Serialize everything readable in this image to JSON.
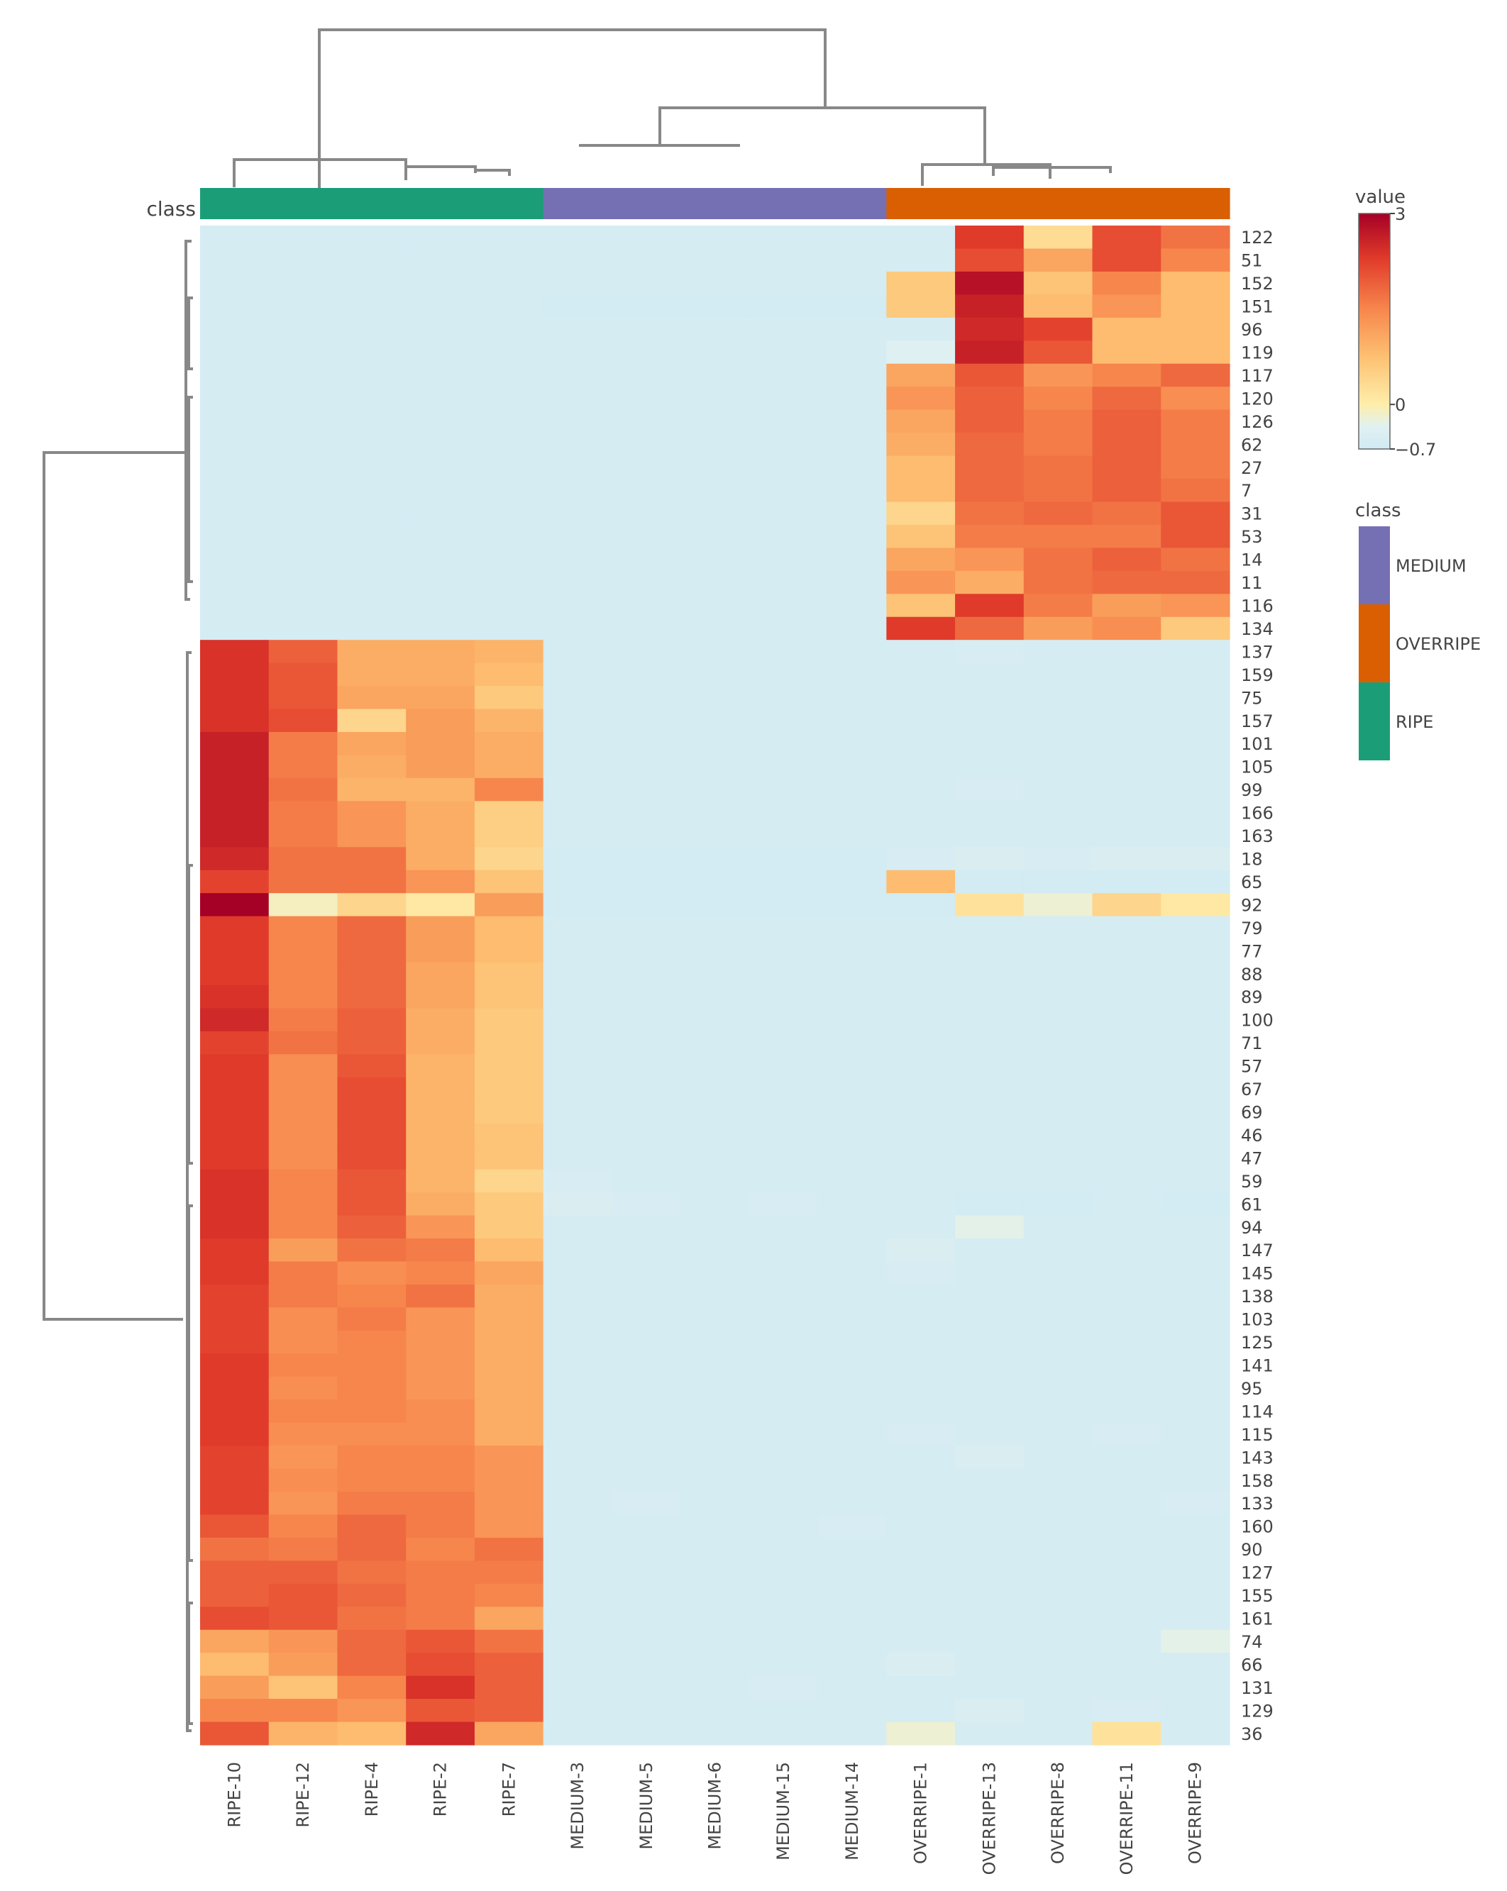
{
  "chart_data": {
    "type": "heatmap",
    "title": "",
    "xlabel": "",
    "ylabel": "",
    "annotation_title": "class",
    "columns": [
      "RIPE-10",
      "RIPE-12",
      "RIPE-4",
      "RIPE-2",
      "RIPE-7",
      "MEDIUM-3",
      "MEDIUM-5",
      "MEDIUM-6",
      "MEDIUM-15",
      "MEDIUM-14",
      "OVERRIPE-1",
      "OVERRIPE-13",
      "OVERRIPE-8",
      "OVERRIPE-11",
      "OVERRIPE-9"
    ],
    "column_classes": [
      "RIPE",
      "RIPE",
      "RIPE",
      "RIPE",
      "RIPE",
      "MEDIUM",
      "MEDIUM",
      "MEDIUM",
      "MEDIUM",
      "MEDIUM",
      "OVERRIPE",
      "OVERRIPE",
      "OVERRIPE",
      "OVERRIPE",
      "OVERRIPE"
    ],
    "rows": [
      "122",
      "51",
      "152",
      "151",
      "96",
      "119",
      "117",
      "120",
      "126",
      "62",
      "27",
      "7",
      "31",
      "53",
      "14",
      "11",
      "116",
      "134",
      "137",
      "159",
      "75",
      "157",
      "101",
      "105",
      "99",
      "166",
      "163",
      "18",
      "65",
      "92",
      "79",
      "77",
      "88",
      "89",
      "100",
      "71",
      "57",
      "67",
      "69",
      "46",
      "47",
      "59",
      "61",
      "94",
      "147",
      "145",
      "138",
      "103",
      "125",
      "141",
      "95",
      "114",
      "115",
      "143",
      "158",
      "133",
      "160",
      "90",
      "127",
      "155",
      "161",
      "74",
      "66",
      "131",
      "129",
      "36"
    ],
    "values": [
      [
        -0.6,
        -0.6,
        -0.6,
        -0.6,
        -0.6,
        -0.6,
        -0.6,
        -0.6,
        -0.6,
        -0.6,
        -0.6,
        2.3,
        0.3,
        2.1,
        1.7
      ],
      [
        -0.6,
        -0.6,
        -0.6,
        -0.6,
        -0.6,
        -0.6,
        -0.6,
        -0.6,
        -0.6,
        -0.6,
        -0.6,
        2.1,
        1.1,
        2.1,
        1.5
      ],
      [
        -0.6,
        -0.6,
        -0.6,
        -0.6,
        -0.6,
        -0.6,
        -0.6,
        -0.6,
        -0.6,
        -0.6,
        0.6,
        2.8,
        0.7,
        1.5,
        0.8
      ],
      [
        -0.6,
        -0.6,
        -0.6,
        -0.6,
        -0.6,
        -0.65,
        -0.65,
        -0.65,
        -0.65,
        -0.65,
        0.6,
        2.6,
        0.8,
        1.3,
        0.8
      ],
      [
        -0.6,
        -0.6,
        -0.6,
        -0.6,
        -0.6,
        -0.6,
        -0.6,
        -0.6,
        -0.6,
        -0.6,
        -0.6,
        2.5,
        2.2,
        0.8,
        0.8
      ],
      [
        -0.6,
        -0.6,
        -0.6,
        -0.6,
        -0.6,
        -0.6,
        -0.6,
        -0.6,
        -0.6,
        -0.6,
        -0.4,
        2.6,
        2.0,
        0.8,
        0.8
      ],
      [
        -0.6,
        -0.6,
        -0.6,
        -0.6,
        -0.6,
        -0.6,
        -0.6,
        -0.6,
        -0.6,
        -0.6,
        1.1,
        2.0,
        1.3,
        1.5,
        1.8
      ],
      [
        -0.6,
        -0.6,
        -0.6,
        -0.6,
        -0.6,
        -0.6,
        -0.6,
        -0.6,
        -0.6,
        -0.6,
        1.3,
        1.9,
        1.5,
        1.8,
        1.4
      ],
      [
        -0.6,
        -0.6,
        -0.6,
        -0.6,
        -0.6,
        -0.6,
        -0.6,
        -0.6,
        -0.6,
        -0.6,
        1.1,
        1.9,
        1.6,
        1.9,
        1.6
      ],
      [
        -0.6,
        -0.6,
        -0.6,
        -0.6,
        -0.6,
        -0.6,
        -0.6,
        -0.6,
        -0.6,
        -0.6,
        1.0,
        1.8,
        1.6,
        1.9,
        1.6
      ],
      [
        -0.6,
        -0.6,
        -0.6,
        -0.6,
        -0.6,
        -0.6,
        -0.6,
        -0.6,
        -0.6,
        -0.6,
        0.8,
        1.8,
        1.7,
        1.9,
        1.6
      ],
      [
        -0.6,
        -0.6,
        -0.6,
        -0.6,
        -0.6,
        -0.6,
        -0.6,
        -0.6,
        -0.6,
        -0.6,
        0.8,
        1.8,
        1.7,
        1.9,
        1.7
      ],
      [
        -0.6,
        -0.6,
        -0.6,
        -0.6,
        -0.6,
        -0.6,
        -0.6,
        -0.6,
        -0.6,
        -0.6,
        0.4,
        1.7,
        1.8,
        1.7,
        2.0
      ],
      [
        -0.6,
        -0.6,
        -0.6,
        -0.6,
        -0.6,
        -0.6,
        -0.6,
        -0.6,
        -0.6,
        -0.6,
        0.7,
        1.6,
        1.6,
        1.6,
        2.0
      ],
      [
        -0.6,
        -0.6,
        -0.6,
        -0.6,
        -0.6,
        -0.6,
        -0.6,
        -0.6,
        -0.6,
        -0.6,
        1.1,
        1.3,
        1.7,
        1.9,
        1.7
      ],
      [
        -0.6,
        -0.6,
        -0.6,
        -0.6,
        -0.6,
        -0.6,
        -0.6,
        -0.6,
        -0.6,
        -0.6,
        1.3,
        1.0,
        1.7,
        1.8,
        1.8
      ],
      [
        -0.6,
        -0.6,
        -0.6,
        -0.6,
        -0.6,
        -0.6,
        -0.6,
        -0.6,
        -0.6,
        -0.6,
        0.7,
        2.3,
        1.6,
        1.2,
        1.3
      ],
      [
        -0.6,
        -0.6,
        -0.6,
        -0.6,
        -0.6,
        -0.6,
        -0.6,
        -0.6,
        -0.6,
        -0.6,
        2.3,
        1.8,
        1.2,
        1.4,
        0.6
      ],
      [
        2.4,
        1.9,
        1.0,
        1.0,
        0.9,
        -0.6,
        -0.6,
        -0.6,
        -0.6,
        -0.6,
        -0.6,
        -0.55,
        -0.6,
        -0.6,
        -0.6
      ],
      [
        2.4,
        2.0,
        1.0,
        1.0,
        0.8,
        -0.6,
        -0.6,
        -0.6,
        -0.6,
        -0.6,
        -0.6,
        -0.6,
        -0.6,
        -0.6,
        -0.6
      ],
      [
        2.4,
        2.0,
        1.1,
        1.1,
        0.6,
        -0.6,
        -0.6,
        -0.6,
        -0.6,
        -0.6,
        -0.6,
        -0.6,
        -0.6,
        -0.6,
        -0.6
      ],
      [
        2.4,
        2.1,
        0.4,
        1.2,
        0.9,
        -0.6,
        -0.6,
        -0.6,
        -0.6,
        -0.6,
        -0.6,
        -0.6,
        -0.6,
        -0.6,
        -0.6
      ],
      [
        2.6,
        1.6,
        1.1,
        1.2,
        1.0,
        -0.6,
        -0.6,
        -0.6,
        -0.6,
        -0.6,
        -0.6,
        -0.6,
        -0.6,
        -0.6,
        -0.6
      ],
      [
        2.6,
        1.6,
        1.0,
        1.2,
        1.0,
        -0.6,
        -0.6,
        -0.6,
        -0.6,
        -0.6,
        -0.6,
        -0.6,
        -0.6,
        -0.6,
        -0.6
      ],
      [
        2.6,
        1.7,
        0.9,
        0.9,
        1.5,
        -0.6,
        -0.6,
        -0.6,
        -0.6,
        -0.6,
        -0.6,
        -0.55,
        -0.6,
        -0.6,
        -0.6
      ],
      [
        2.6,
        1.6,
        1.3,
        1.0,
        0.5,
        -0.6,
        -0.6,
        -0.6,
        -0.6,
        -0.6,
        -0.6,
        -0.6,
        -0.6,
        -0.6,
        -0.6
      ],
      [
        2.6,
        1.6,
        1.3,
        1.0,
        0.5,
        -0.6,
        -0.6,
        -0.6,
        -0.6,
        -0.6,
        -0.6,
        -0.6,
        -0.6,
        -0.6,
        -0.6
      ],
      [
        2.5,
        1.7,
        1.7,
        1.0,
        0.4,
        -0.65,
        -0.65,
        -0.65,
        -0.65,
        -0.65,
        -0.55,
        -0.5,
        -0.55,
        -0.5,
        -0.5
      ],
      [
        2.2,
        1.7,
        1.7,
        1.3,
        0.7,
        -0.65,
        -0.65,
        -0.65,
        -0.65,
        -0.65,
        0.8,
        -0.65,
        -0.65,
        -0.65,
        -0.65
      ],
      [
        3.0,
        -0.1,
        0.4,
        0.1,
        1.2,
        -0.65,
        -0.65,
        -0.65,
        -0.65,
        -0.65,
        -0.65,
        0.2,
        -0.2,
        0.4,
        0.1
      ],
      [
        2.3,
        1.5,
        1.8,
        1.2,
        0.8,
        -0.6,
        -0.6,
        -0.6,
        -0.6,
        -0.6,
        -0.6,
        -0.6,
        -0.6,
        -0.6,
        -0.6
      ],
      [
        2.3,
        1.5,
        1.8,
        1.2,
        0.8,
        -0.6,
        -0.6,
        -0.6,
        -0.6,
        -0.6,
        -0.6,
        -0.6,
        -0.6,
        -0.6,
        -0.6
      ],
      [
        2.3,
        1.5,
        1.8,
        1.1,
        0.7,
        -0.6,
        -0.6,
        -0.6,
        -0.6,
        -0.6,
        -0.6,
        -0.6,
        -0.6,
        -0.6,
        -0.6
      ],
      [
        2.4,
        1.5,
        1.8,
        1.1,
        0.7,
        -0.6,
        -0.6,
        -0.6,
        -0.6,
        -0.6,
        -0.6,
        -0.6,
        -0.6,
        -0.6,
        -0.6
      ],
      [
        2.5,
        1.6,
        1.9,
        1.0,
        0.6,
        -0.6,
        -0.6,
        -0.6,
        -0.6,
        -0.6,
        -0.6,
        -0.6,
        -0.6,
        -0.6,
        -0.6
      ],
      [
        2.2,
        1.7,
        1.9,
        1.0,
        0.6,
        -0.6,
        -0.6,
        -0.6,
        -0.6,
        -0.6,
        -0.6,
        -0.6,
        -0.6,
        -0.6,
        -0.6
      ],
      [
        2.3,
        1.4,
        2.0,
        0.9,
        0.6,
        -0.6,
        -0.6,
        -0.6,
        -0.6,
        -0.6,
        -0.6,
        -0.6,
        -0.6,
        -0.6,
        -0.6
      ],
      [
        2.3,
        1.4,
        2.1,
        0.9,
        0.6,
        -0.6,
        -0.6,
        -0.6,
        -0.6,
        -0.6,
        -0.6,
        -0.6,
        -0.6,
        -0.6,
        -0.6
      ],
      [
        2.3,
        1.4,
        2.1,
        0.9,
        0.6,
        -0.6,
        -0.6,
        -0.6,
        -0.6,
        -0.6,
        -0.6,
        -0.6,
        -0.6,
        -0.6,
        -0.6
      ],
      [
        2.3,
        1.4,
        2.1,
        0.9,
        0.7,
        -0.6,
        -0.6,
        -0.6,
        -0.6,
        -0.6,
        -0.6,
        -0.6,
        -0.6,
        -0.6,
        -0.6
      ],
      [
        2.3,
        1.4,
        2.1,
        0.9,
        0.7,
        -0.6,
        -0.6,
        -0.6,
        -0.6,
        -0.6,
        -0.6,
        -0.6,
        -0.6,
        -0.6,
        -0.6
      ],
      [
        2.4,
        1.5,
        2.0,
        0.9,
        0.4,
        -0.55,
        -0.6,
        -0.6,
        -0.6,
        -0.6,
        -0.6,
        -0.6,
        -0.6,
        -0.6,
        -0.6
      ],
      [
        2.4,
        1.5,
        2.0,
        1.0,
        0.6,
        -0.5,
        -0.55,
        -0.6,
        -0.55,
        -0.6,
        -0.6,
        -0.65,
        -0.65,
        -0.6,
        -0.65
      ],
      [
        2.4,
        1.5,
        1.9,
        1.3,
        0.6,
        -0.6,
        -0.6,
        -0.6,
        -0.6,
        -0.6,
        -0.6,
        -0.3,
        -0.6,
        -0.6,
        -0.6
      ],
      [
        2.3,
        1.2,
        1.7,
        1.6,
        0.8,
        -0.6,
        -0.6,
        -0.6,
        -0.6,
        -0.6,
        -0.5,
        -0.6,
        -0.6,
        -0.6,
        -0.6
      ],
      [
        2.3,
        1.6,
        1.4,
        1.5,
        1.1,
        -0.6,
        -0.6,
        -0.6,
        -0.6,
        -0.6,
        -0.55,
        -0.6,
        -0.6,
        -0.6,
        -0.6
      ],
      [
        2.2,
        1.6,
        1.5,
        1.7,
        1.0,
        -0.6,
        -0.6,
        -0.6,
        -0.6,
        -0.6,
        -0.6,
        -0.6,
        -0.6,
        -0.6,
        -0.6
      ],
      [
        2.2,
        1.4,
        1.6,
        1.3,
        1.0,
        -0.6,
        -0.6,
        -0.6,
        -0.6,
        -0.6,
        -0.6,
        -0.6,
        -0.6,
        -0.6,
        -0.6
      ],
      [
        2.2,
        1.4,
        1.5,
        1.3,
        1.0,
        -0.6,
        -0.6,
        -0.6,
        -0.6,
        -0.6,
        -0.6,
        -0.6,
        -0.6,
        -0.6,
        -0.6
      ],
      [
        2.3,
        1.5,
        1.5,
        1.3,
        1.0,
        -0.6,
        -0.6,
        -0.6,
        -0.6,
        -0.6,
        -0.6,
        -0.6,
        -0.6,
        -0.6,
        -0.6
      ],
      [
        2.3,
        1.4,
        1.5,
        1.3,
        1.0,
        -0.6,
        -0.6,
        -0.6,
        -0.6,
        -0.6,
        -0.6,
        -0.6,
        -0.6,
        -0.6,
        -0.6
      ],
      [
        2.3,
        1.5,
        1.5,
        1.4,
        1.0,
        -0.6,
        -0.6,
        -0.6,
        -0.6,
        -0.6,
        -0.6,
        -0.6,
        -0.6,
        -0.6,
        -0.6
      ],
      [
        2.3,
        1.4,
        1.4,
        1.4,
        1.0,
        -0.6,
        -0.6,
        -0.6,
        -0.6,
        -0.6,
        -0.55,
        -0.6,
        -0.6,
        -0.55,
        -0.6
      ],
      [
        2.2,
        1.3,
        1.5,
        1.5,
        1.3,
        -0.6,
        -0.6,
        -0.6,
        -0.6,
        -0.6,
        -0.6,
        -0.5,
        -0.6,
        -0.6,
        -0.6
      ],
      [
        2.2,
        1.4,
        1.5,
        1.5,
        1.3,
        -0.6,
        -0.6,
        -0.6,
        -0.6,
        -0.6,
        -0.6,
        -0.6,
        -0.6,
        -0.6,
        -0.6
      ],
      [
        2.2,
        1.3,
        1.6,
        1.6,
        1.3,
        -0.6,
        -0.55,
        -0.6,
        -0.6,
        -0.6,
        -0.6,
        -0.6,
        -0.6,
        -0.6,
        -0.55
      ],
      [
        2.0,
        1.5,
        1.8,
        1.6,
        1.3,
        -0.6,
        -0.6,
        -0.6,
        -0.6,
        -0.55,
        -0.6,
        -0.6,
        -0.6,
        -0.6,
        -0.6
      ],
      [
        1.7,
        1.6,
        1.8,
        1.5,
        1.7,
        -0.6,
        -0.6,
        -0.6,
        -0.6,
        -0.6,
        -0.6,
        -0.6,
        -0.6,
        -0.6,
        -0.6
      ],
      [
        1.9,
        1.9,
        1.7,
        1.6,
        1.6,
        -0.6,
        -0.6,
        -0.6,
        -0.6,
        -0.6,
        -0.6,
        -0.6,
        -0.6,
        -0.6,
        -0.6
      ],
      [
        1.9,
        2.0,
        1.8,
        1.6,
        1.5,
        -0.6,
        -0.6,
        -0.6,
        -0.6,
        -0.6,
        -0.6,
        -0.6,
        -0.6,
        -0.6,
        -0.6
      ],
      [
        2.1,
        2.0,
        1.7,
        1.6,
        1.1,
        -0.6,
        -0.6,
        -0.6,
        -0.6,
        -0.6,
        -0.6,
        -0.6,
        -0.6,
        -0.6,
        -0.6
      ],
      [
        1.1,
        1.3,
        1.8,
        2.0,
        1.7,
        -0.6,
        -0.6,
        -0.6,
        -0.6,
        -0.6,
        -0.6,
        -0.6,
        -0.6,
        -0.6,
        -0.3
      ],
      [
        0.8,
        1.2,
        1.8,
        2.1,
        1.9,
        -0.6,
        -0.6,
        -0.6,
        -0.6,
        -0.6,
        -0.5,
        -0.6,
        -0.6,
        -0.6,
        -0.6
      ],
      [
        1.2,
        0.7,
        1.5,
        2.4,
        1.9,
        -0.6,
        -0.6,
        -0.6,
        -0.55,
        -0.6,
        -0.6,
        -0.6,
        -0.6,
        -0.6,
        -0.6
      ],
      [
        1.5,
        1.5,
        1.3,
        2.0,
        1.9,
        -0.6,
        -0.6,
        -0.6,
        -0.6,
        -0.6,
        -0.6,
        -0.5,
        -0.6,
        -0.55,
        -0.6
      ],
      [
        2.0,
        0.9,
        0.8,
        2.5,
        1.1,
        -0.6,
        -0.6,
        -0.6,
        -0.6,
        -0.6,
        -0.2,
        -0.6,
        -0.6,
        0.2,
        -0.6
      ]
    ],
    "color_scale": {
      "title": "value",
      "min": -0.7,
      "max": 3,
      "ticks": [
        "3",
        "0",
        "−0.7"
      ],
      "tick_values": [
        3,
        0,
        -0.7
      ]
    },
    "legend": {
      "title": "class",
      "entries": [
        {
          "label": "MEDIUM",
          "color": "#7570b3"
        },
        {
          "label": "OVERRIPE",
          "color": "#d95f02"
        },
        {
          "label": "RIPE",
          "color": "#1b9e77"
        }
      ]
    },
    "legend_placement": "right",
    "column_dendrogram": true,
    "row_dendrogram": true
  },
  "colors": {
    "RIPE": "#1b9e77",
    "MEDIUM": "#7570b3",
    "OVERRIPE": "#d95f02",
    "dendrogram": "#888888"
  }
}
